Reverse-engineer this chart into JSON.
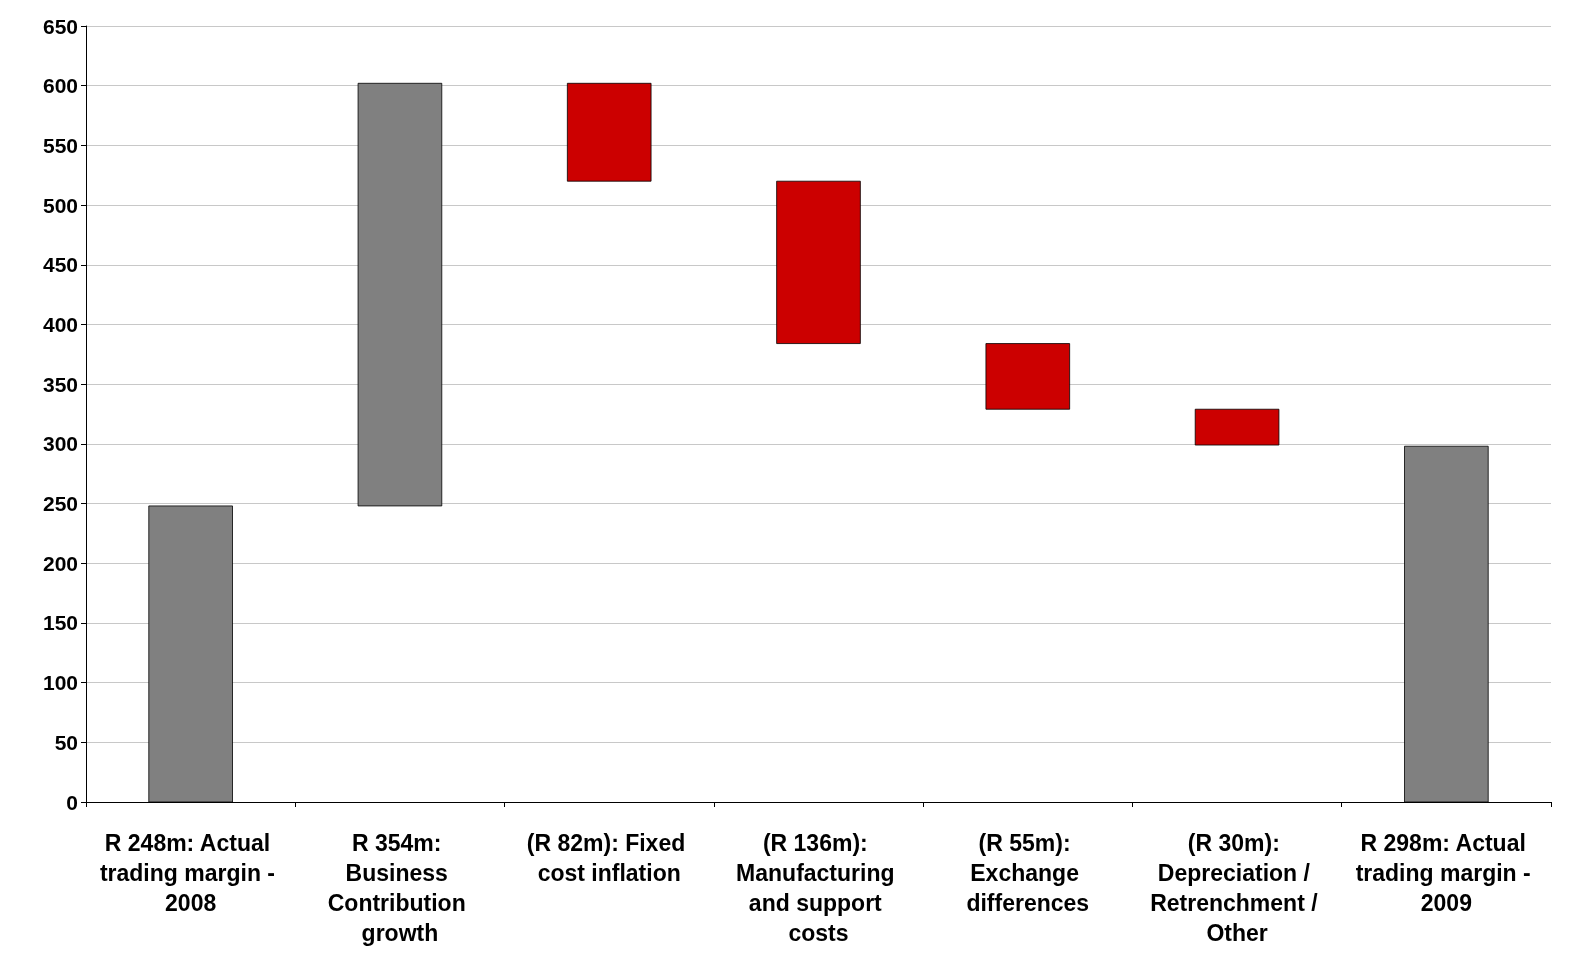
{
  "chart_data": {
    "type": "bar",
    "categories": [
      "R 248m: Actual trading margin - 2008",
      "R 354m: Business Contribution growth",
      "(R 82m): Fixed cost inflation",
      "(R 136m): Manufacturing and support costs",
      "(R 55m): Exchange differences",
      "(R 30m): Depreciation / Retrenchment / Other",
      "R 298m: Actual trading margin - 2009"
    ],
    "values": [
      248,
      354,
      -82,
      -136,
      -55,
      -30,
      298
    ],
    "base": [
      0,
      248,
      602,
      520,
      384,
      329,
      0
    ],
    "colors": [
      "#808080",
      "#808080",
      "#cc0000",
      "#cc0000",
      "#cc0000",
      "#cc0000",
      "#808080"
    ],
    "ylim": [
      0,
      650
    ],
    "yticks": [
      0,
      50,
      100,
      150,
      200,
      250,
      300,
      350,
      400,
      450,
      500,
      550,
      600,
      650
    ],
    "grid": "y"
  }
}
